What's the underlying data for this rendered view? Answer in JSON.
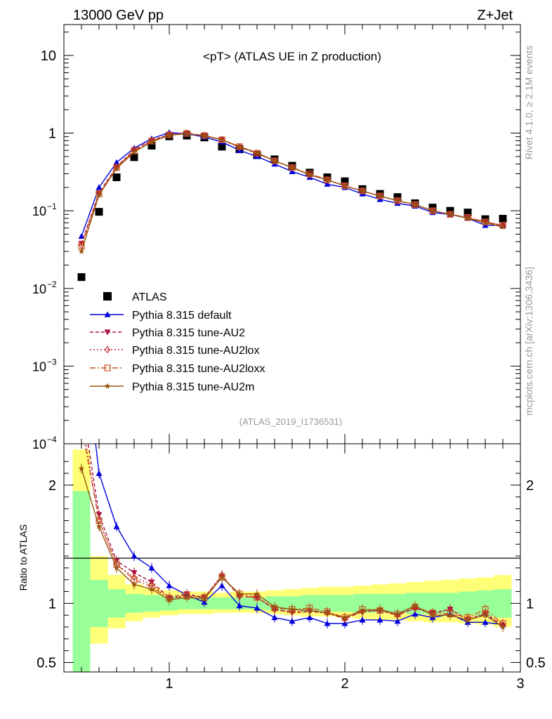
{
  "header": {
    "left": "13000 GeV pp",
    "right": "Z+Jet"
  },
  "side_labels": {
    "rivet": "Rivet 4.1.0, ≥ 2.1M events",
    "mcplots": "mcplots.cern.ch [arXiv:1306.3436]"
  },
  "chart_data": [
    {
      "type": "line",
      "title": "<pT> (ATLAS UE in Z production)",
      "watermark": "(ATLAS_2019_I1736531)",
      "yscale": "log",
      "xlim": [
        0.4,
        3.0
      ],
      "ylim": [
        0.0001,
        25
      ],
      "y_ticks": [
        {
          "value": 0.0001,
          "base": "10",
          "exp": "−4"
        },
        {
          "value": 0.001,
          "base": "10",
          "exp": "−3"
        },
        {
          "value": 0.01,
          "base": "10",
          "exp": "−2"
        },
        {
          "value": 0.1,
          "base": "10",
          "exp": "−1"
        },
        {
          "value": 1,
          "base": "1",
          "exp": ""
        },
        {
          "value": 10,
          "base": "10",
          "exp": ""
        }
      ],
      "x": [
        0.5,
        0.6,
        0.7,
        0.8,
        0.9,
        1.0,
        1.1,
        1.2,
        1.3,
        1.4,
        1.5,
        1.6,
        1.7,
        1.8,
        1.9,
        2.0,
        2.1,
        2.2,
        2.3,
        2.4,
        2.5,
        2.6,
        2.7,
        2.8,
        2.9
      ],
      "series": [
        {
          "name": "ATLAS",
          "color": "#000000",
          "marker": "square",
          "dash": "none",
          "values": [
            0.014,
            0.097,
            0.27,
            0.49,
            0.69,
            0.91,
            0.93,
            0.88,
            0.67,
            0.62,
            0.52,
            0.46,
            0.38,
            0.31,
            0.27,
            0.24,
            0.19,
            0.165,
            0.15,
            0.125,
            0.11,
            0.1,
            0.095,
            0.078,
            0.079
          ]
        },
        {
          "name": "Pythia 8.315 default",
          "color": "#0000dd",
          "marker": "triangle-up",
          "dash": "none",
          "values": [
            0.047,
            0.2,
            0.42,
            0.64,
            0.85,
            1.02,
            0.98,
            0.89,
            0.77,
            0.6,
            0.5,
            0.4,
            0.32,
            0.27,
            0.22,
            0.2,
            0.165,
            0.14,
            0.125,
            0.115,
            0.095,
            0.09,
            0.08,
            0.065,
            0.065
          ]
        },
        {
          "name": "Pythia 8.315 tune-AU2",
          "color": "#aa1144",
          "marker": "triangle-down",
          "dash": "5,3",
          "values": [
            0.038,
            0.17,
            0.37,
            0.61,
            0.81,
            0.96,
            1.0,
            0.93,
            0.82,
            0.66,
            0.55,
            0.44,
            0.36,
            0.29,
            0.25,
            0.21,
            0.18,
            0.155,
            0.135,
            0.12,
            0.1,
            0.09,
            0.082,
            0.071,
            0.064
          ]
        },
        {
          "name": "Pythia 8.315 tune-AU2lox",
          "color": "#bb2233",
          "marker": "diamond",
          "dash": "2,3",
          "values": [
            0.036,
            0.165,
            0.36,
            0.6,
            0.8,
            0.95,
            1.0,
            0.93,
            0.83,
            0.66,
            0.55,
            0.44,
            0.36,
            0.29,
            0.25,
            0.21,
            0.18,
            0.155,
            0.135,
            0.12,
            0.1,
            0.09,
            0.082,
            0.072,
            0.065
          ]
        },
        {
          "name": "Pythia 8.315 tune-AU2loxx",
          "color": "#cc5522",
          "marker": "square-open",
          "dash": "8,3,2,3",
          "values": [
            0.035,
            0.165,
            0.36,
            0.59,
            0.79,
            0.95,
            0.99,
            0.93,
            0.82,
            0.67,
            0.55,
            0.44,
            0.36,
            0.3,
            0.25,
            0.21,
            0.18,
            0.155,
            0.135,
            0.12,
            0.1,
            0.09,
            0.082,
            0.072,
            0.065
          ]
        },
        {
          "name": "Pythia 8.315 tune-AU2m",
          "color": "#995511",
          "marker": "star",
          "dash": "none",
          "values": [
            0.03,
            0.16,
            0.35,
            0.57,
            0.77,
            0.94,
            0.98,
            0.92,
            0.82,
            0.67,
            0.56,
            0.44,
            0.36,
            0.29,
            0.25,
            0.21,
            0.18,
            0.155,
            0.135,
            0.12,
            0.1,
            0.09,
            0.08,
            0.07,
            0.062
          ]
        }
      ]
    },
    {
      "type": "line",
      "ylabel": "Ratio to ATLAS",
      "xlim": [
        0.4,
        3.0
      ],
      "ylim": [
        0.42,
        2.35
      ],
      "x_ticks": [
        {
          "value": 1,
          "label": "1"
        },
        {
          "value": 2,
          "label": "2"
        },
        {
          "value": 3,
          "label": "3"
        }
      ],
      "y_ticks": [
        {
          "value": 0.5,
          "label": "0.5"
        },
        {
          "value": 1,
          "label": "1"
        },
        {
          "value": 2,
          "label": "2"
        }
      ],
      "x": [
        0.5,
        0.6,
        0.7,
        0.8,
        0.9,
        1.0,
        1.1,
        1.2,
        1.3,
        1.4,
        1.5,
        1.6,
        1.7,
        1.8,
        1.9,
        2.0,
        2.1,
        2.2,
        2.3,
        2.4,
        2.5,
        2.6,
        2.7,
        2.8,
        2.9
      ],
      "bands": {
        "green": {
          "color": "#99ff99",
          "low": [
            0.4,
            0.8,
            0.88,
            0.92,
            0.93,
            0.94,
            0.95,
            0.95,
            0.95,
            0.95,
            0.95,
            0.94,
            0.94,
            0.93,
            0.93,
            0.93,
            0.92,
            0.92,
            0.92,
            0.91,
            0.91,
            0.91,
            0.9,
            0.89,
            0.88
          ],
          "high": [
            1.95,
            1.2,
            1.12,
            1.08,
            1.07,
            1.06,
            1.05,
            1.05,
            1.05,
            1.05,
            1.05,
            1.06,
            1.06,
            1.07,
            1.07,
            1.07,
            1.08,
            1.08,
            1.08,
            1.09,
            1.09,
            1.09,
            1.1,
            1.11,
            1.12
          ]
        },
        "yellow": {
          "color": "#ffff77",
          "low": [
            0.4,
            0.66,
            0.79,
            0.85,
            0.88,
            0.9,
            0.91,
            0.91,
            0.92,
            0.92,
            0.92,
            0.91,
            0.9,
            0.89,
            0.89,
            0.88,
            0.87,
            0.86,
            0.86,
            0.85,
            0.84,
            0.84,
            0.83,
            0.82,
            0.8
          ],
          "high": [
            2.3,
            1.4,
            1.24,
            1.16,
            1.13,
            1.11,
            1.1,
            1.1,
            1.09,
            1.1,
            1.1,
            1.11,
            1.12,
            1.13,
            1.14,
            1.14,
            1.15,
            1.16,
            1.17,
            1.18,
            1.19,
            1.2,
            1.21,
            1.22,
            1.24
          ]
        }
      },
      "series": [
        {
          "name": "Pythia 8.315 default",
          "values": [
            3.4,
            2.1,
            1.65,
            1.4,
            1.3,
            1.15,
            1.07,
            1.01,
            1.15,
            0.98,
            0.96,
            0.88,
            0.85,
            0.88,
            0.83,
            0.83,
            0.86,
            0.86,
            0.85,
            0.91,
            0.88,
            0.91,
            0.84,
            0.84,
            0.82
          ]
        },
        {
          "name": "Pythia 8.315 tune-AU2",
          "values": [
            2.72,
            1.75,
            1.36,
            1.26,
            1.18,
            1.05,
            1.08,
            1.05,
            1.23,
            1.06,
            1.05,
            0.95,
            0.92,
            0.93,
            0.92,
            0.87,
            0.93,
            0.94,
            0.9,
            0.96,
            0.92,
            0.95,
            0.86,
            0.91,
            0.81
          ]
        },
        {
          "name": "Pythia 8.315 tune-AU2lox",
          "values": [
            2.57,
            1.7,
            1.33,
            1.22,
            1.16,
            1.04,
            1.07,
            1.05,
            1.24,
            1.06,
            1.05,
            0.95,
            0.93,
            0.94,
            0.92,
            0.87,
            0.93,
            0.94,
            0.9,
            0.96,
            0.91,
            0.95,
            0.87,
            0.92,
            0.82
          ]
        },
        {
          "name": "Pythia 8.315 tune-AU2loxx",
          "values": [
            2.5,
            1.7,
            1.33,
            1.2,
            1.14,
            1.04,
            1.06,
            1.05,
            1.22,
            1.08,
            1.05,
            0.96,
            0.95,
            0.96,
            0.93,
            0.88,
            0.95,
            0.94,
            0.91,
            0.97,
            0.92,
            0.91,
            0.88,
            0.95,
            0.83
          ]
        },
        {
          "name": "Pythia 8.315 tune-AU2m",
          "values": [
            2.14,
            1.65,
            1.3,
            1.16,
            1.12,
            1.03,
            1.05,
            1.04,
            1.22,
            1.08,
            1.08,
            0.97,
            0.95,
            0.94,
            0.92,
            0.88,
            0.94,
            0.95,
            0.91,
            0.98,
            0.9,
            0.9,
            0.86,
            0.9,
            0.8
          ]
        }
      ]
    }
  ]
}
